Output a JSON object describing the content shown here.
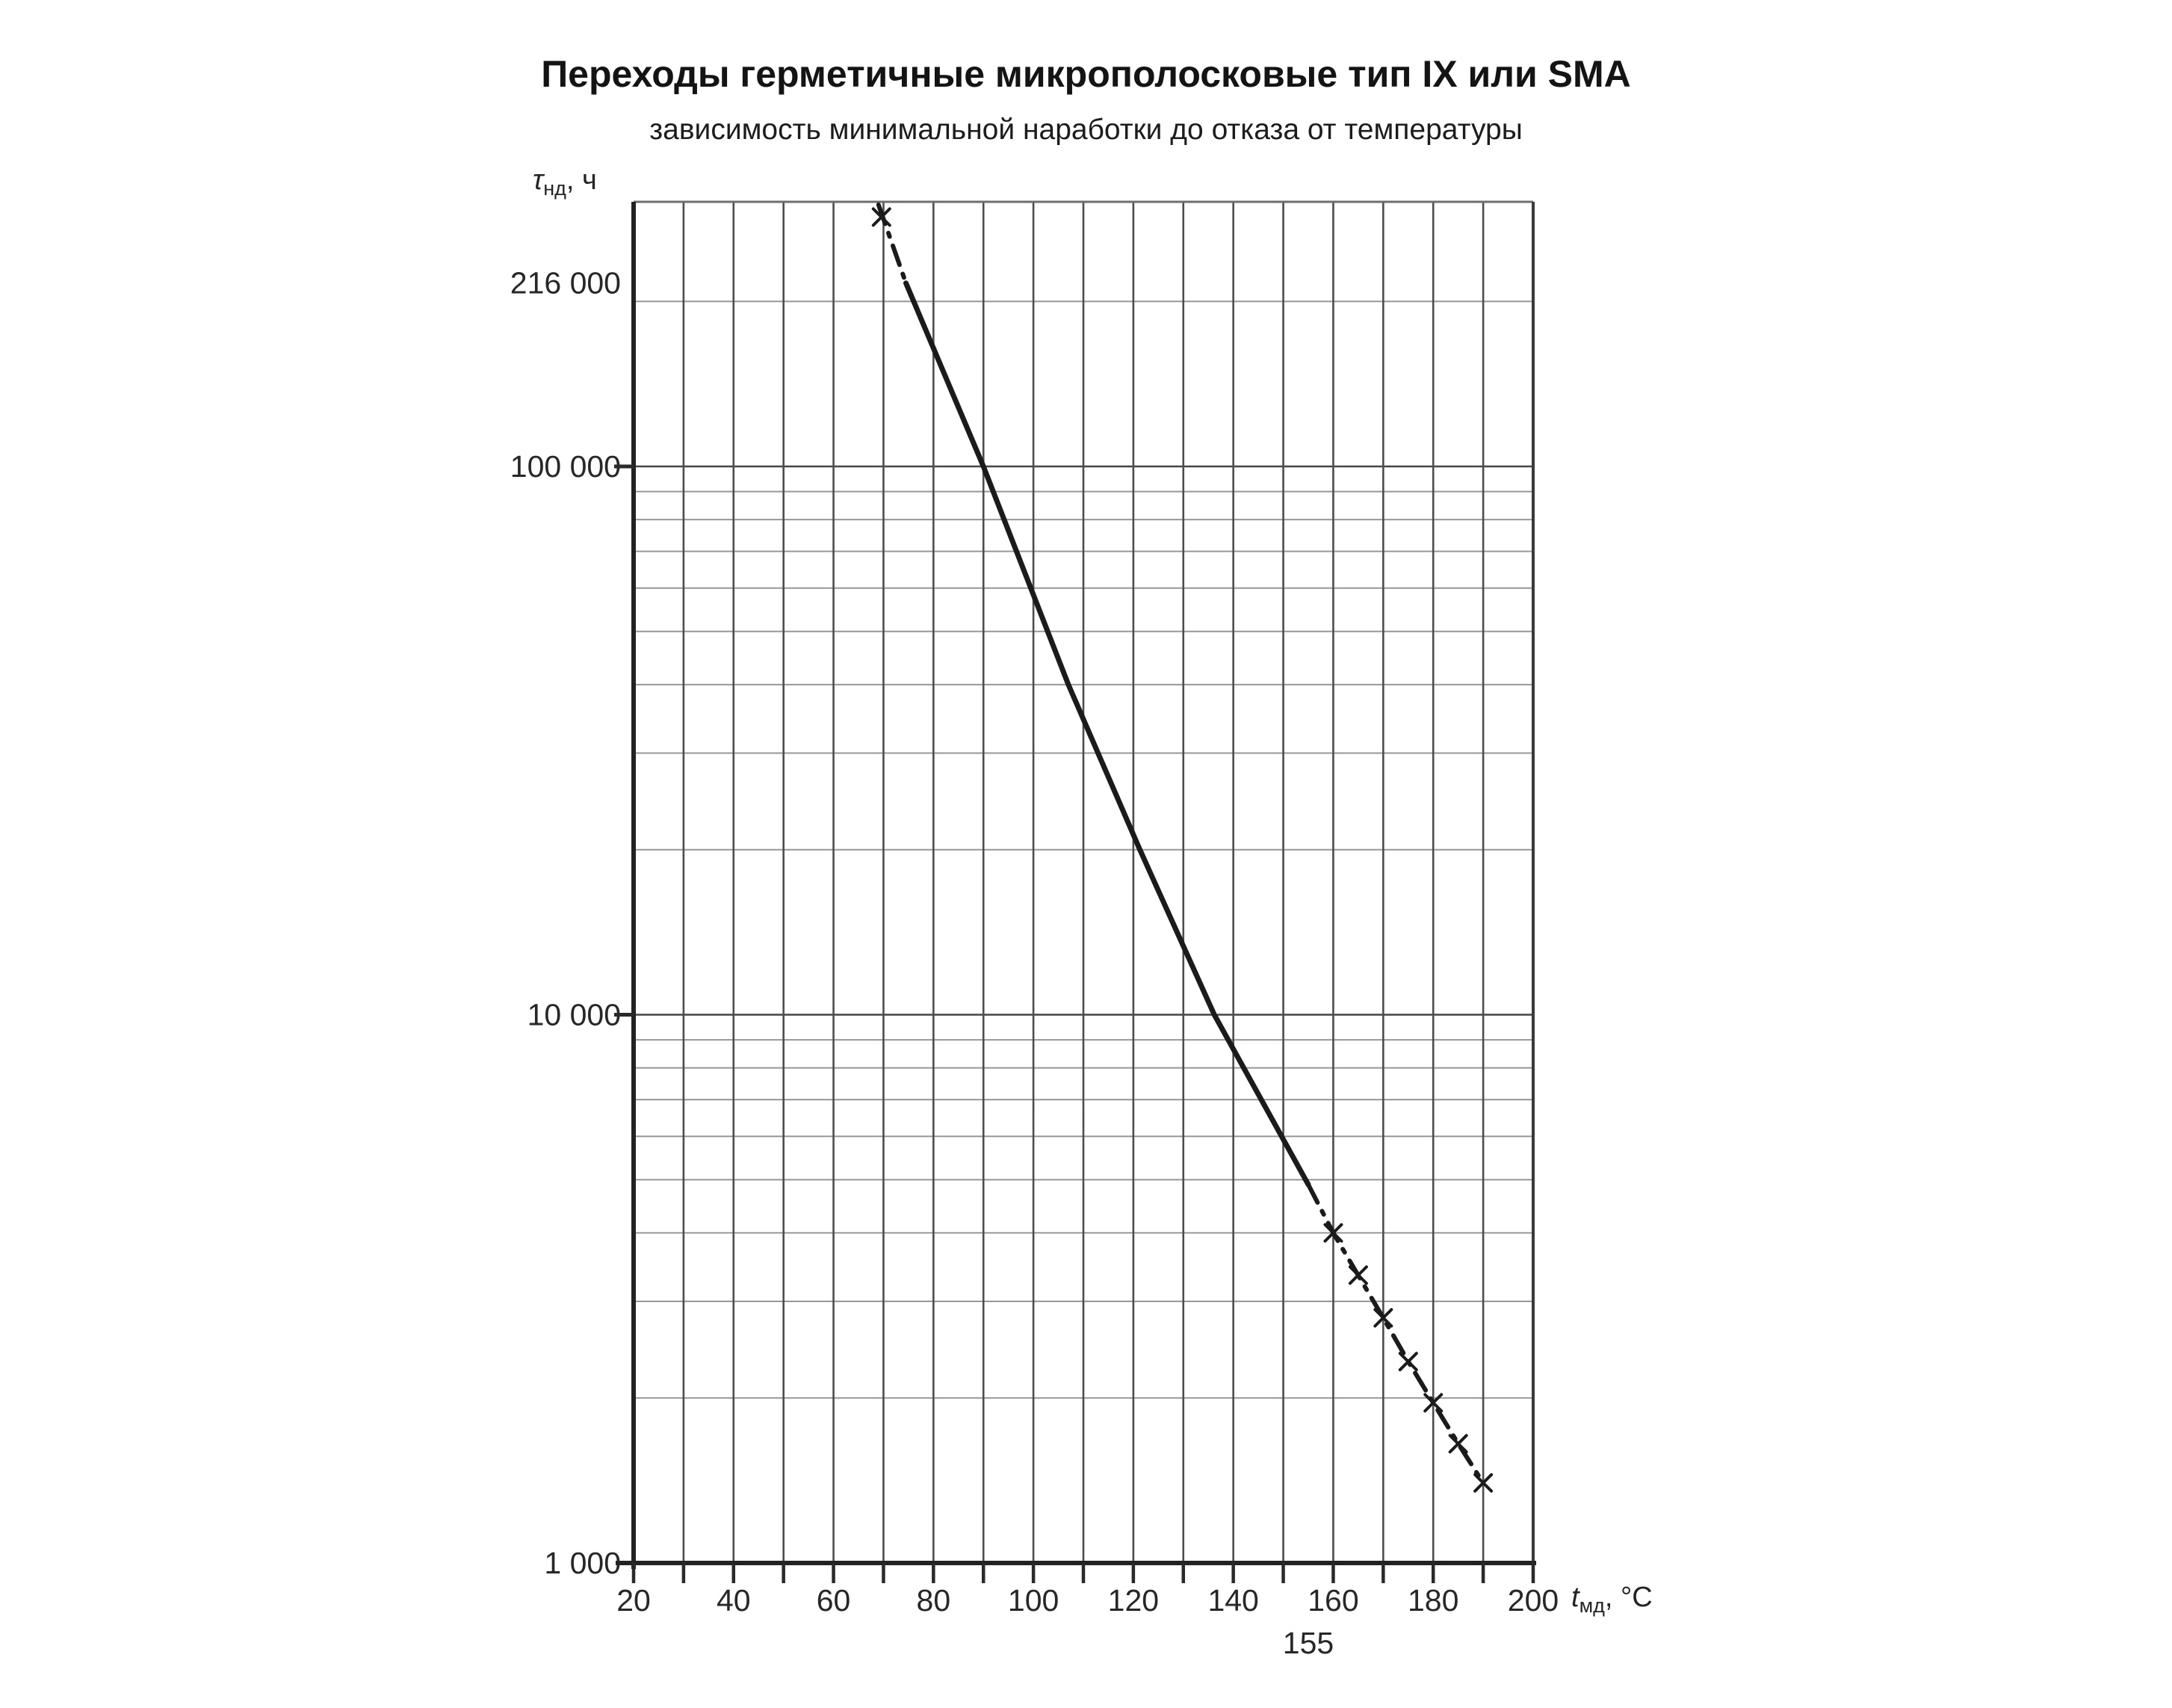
{
  "page": {
    "title": "Переходы герметичные микрополосковые тип IX или SMA",
    "subtitle": "зависимость минимальной наработки до отказа от температуры"
  },
  "y_axis_unit": {
    "symbol": "τ",
    "sub": "нд",
    "rest": ", ч"
  },
  "x_axis_unit": {
    "symbol": "t",
    "sub": "мд",
    "rest": ", °C"
  },
  "chart_data": {
    "type": "line",
    "title": "Переходы герметичные микрополосковые тип IX или SMA",
    "subtitle": "зависимость минимальной наработки до отказа от температуры",
    "xlabel": "t мд, °C",
    "ylabel": "τ нд, ч",
    "x_scale": "linear",
    "y_scale": "log10",
    "xlim": [
      20,
      200
    ],
    "ylim": [
      1000,
      304000
    ],
    "grid": "both, minor log gridlines on y, vertical gridline every 10 °C",
    "legend": "none",
    "x_tick_minor_step": 10,
    "x_tick_labels": [
      {
        "value": 20,
        "label": "20"
      },
      {
        "value": 40,
        "label": "40"
      },
      {
        "value": 60,
        "label": "60"
      },
      {
        "value": 80,
        "label": "80"
      },
      {
        "value": 100,
        "label": "100"
      },
      {
        "value": 120,
        "label": "120"
      },
      {
        "value": 140,
        "label": "140"
      },
      {
        "value": 160,
        "label": "160"
      },
      {
        "value": 180,
        "label": "180"
      },
      {
        "value": 200,
        "label": "200"
      }
    ],
    "x_callout": {
      "value": 155,
      "label": "155"
    },
    "y_tick_labels": [
      {
        "value": 216000,
        "label": "216 000",
        "tick": false
      },
      {
        "value": 100000,
        "label": "100 000",
        "tick": true
      },
      {
        "value": 10000,
        "label": "10 000",
        "tick": true
      },
      {
        "value": 1000,
        "label": "1 000",
        "tick": false
      }
    ],
    "series": [
      {
        "name": "минимальная наработка до отказа от температуры",
        "style_note": "dash-dot extrapolated ends with × markers, solid between 216 000 ч (≈75 °C) and ≈4 900 ч (155 °C)",
        "segments": [
          {
            "style": "dashdot",
            "points": [
              [
                69,
                300000
              ],
              [
                74.5,
                216000
              ]
            ]
          },
          {
            "style": "solid",
            "points": [
              [
                74.5,
                216000
              ],
              [
                90,
                100000
              ],
              [
                107,
                40000
              ],
              [
                121.3,
                20000
              ],
              [
                136.2,
                10000
              ],
              [
                155,
                4900
              ]
            ]
          },
          {
            "style": "dashdot",
            "points": [
              [
                155,
                4900
              ],
              [
                160,
                4000
              ],
              [
                170,
                2800
              ],
              [
                175,
                2330
              ],
              [
                180,
                1960
              ],
              [
                185,
                1650
              ],
              [
                190,
                1400
              ]
            ]
          }
        ],
        "markers": [
          [
            69.6,
            285000
          ],
          [
            160,
            4000
          ],
          [
            165,
            3350
          ],
          [
            170,
            2800
          ],
          [
            175,
            2330
          ],
          [
            180,
            1960
          ],
          [
            185,
            1650
          ],
          [
            190,
            1400
          ]
        ]
      }
    ]
  }
}
